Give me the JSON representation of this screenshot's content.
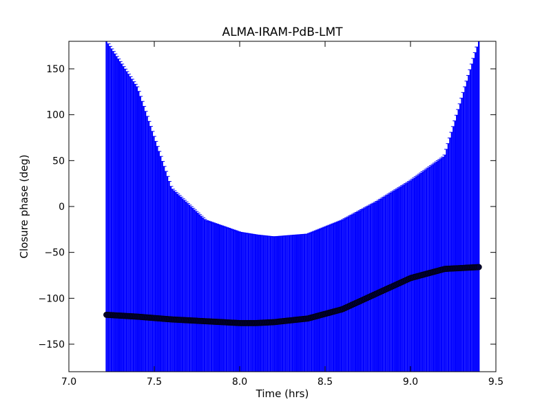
{
  "chart_data": {
    "type": "scatter",
    "title": "ALMA-IRAM-PdB-LMT",
    "xlabel": "Time (hrs)",
    "ylabel": "Closure phase (deg)",
    "xlim": [
      7.0,
      9.5
    ],
    "ylim": [
      -180,
      180
    ],
    "xticks": [
      7.0,
      7.5,
      8.0,
      8.5,
      9.0,
      9.5
    ],
    "xtick_labels": [
      "7.0",
      "7.5",
      "8.0",
      "8.5",
      "9.0",
      "9.5"
    ],
    "yticks": [
      -150,
      -100,
      -50,
      0,
      50,
      100,
      150
    ],
    "ytick_labels": [
      "−150",
      "−100",
      "−50",
      "0",
      "50",
      "100",
      "150"
    ],
    "grid": false,
    "series": [
      {
        "kind": "points_with_errorbars",
        "marker_color": "#000033",
        "errorbar_color": "#0000ff",
        "x": [
          7.22,
          7.4,
          7.6,
          7.8,
          8.0,
          8.1,
          8.2,
          8.4,
          8.6,
          8.8,
          9.0,
          9.2,
          9.4
        ],
        "y": [
          -118,
          -120,
          -123,
          -125,
          -127,
          -127,
          -126,
          -122,
          -112,
          -95,
          -78,
          -68,
          -66
        ],
        "upper": [
          180,
          130,
          20,
          -15,
          -28,
          -31,
          -33,
          -30,
          -15,
          5,
          28,
          55,
          180
        ],
        "lower": [
          -180,
          -180,
          -180,
          -180,
          -180,
          -180,
          -180,
          -180,
          -180,
          -180,
          -180,
          -180,
          -180
        ]
      }
    ]
  }
}
